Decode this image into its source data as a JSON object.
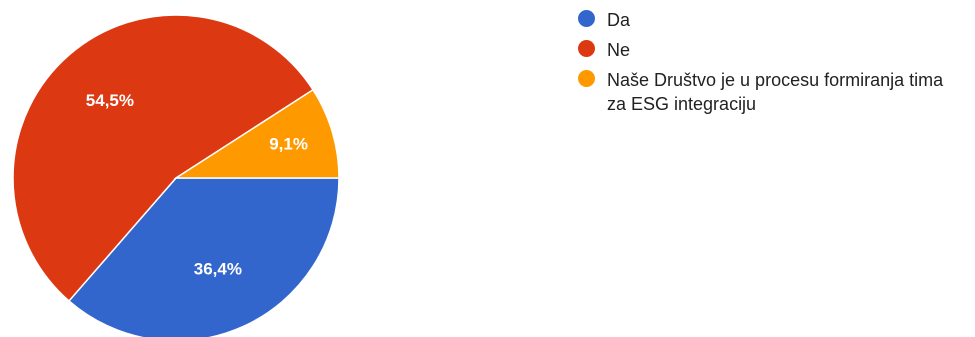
{
  "chart_data": {
    "type": "pie",
    "title": "",
    "series": [
      {
        "categories": [
          "Da",
          "Ne",
          "Naše Društvo je u procesu formiranja tima za ESG integraciju"
        ],
        "values": [
          36.4,
          54.5,
          9.1
        ],
        "labels": [
          "36,4%",
          "54,5%",
          "9,1%"
        ],
        "colors": [
          "#3366cc",
          "#dc3912",
          "#ff9900"
        ]
      }
    ],
    "legend": {
      "placement": "right",
      "entries": [
        "Da",
        "Ne",
        "Naše Društvo je u procesu formiranja tima za ESG integraciju"
      ]
    }
  }
}
